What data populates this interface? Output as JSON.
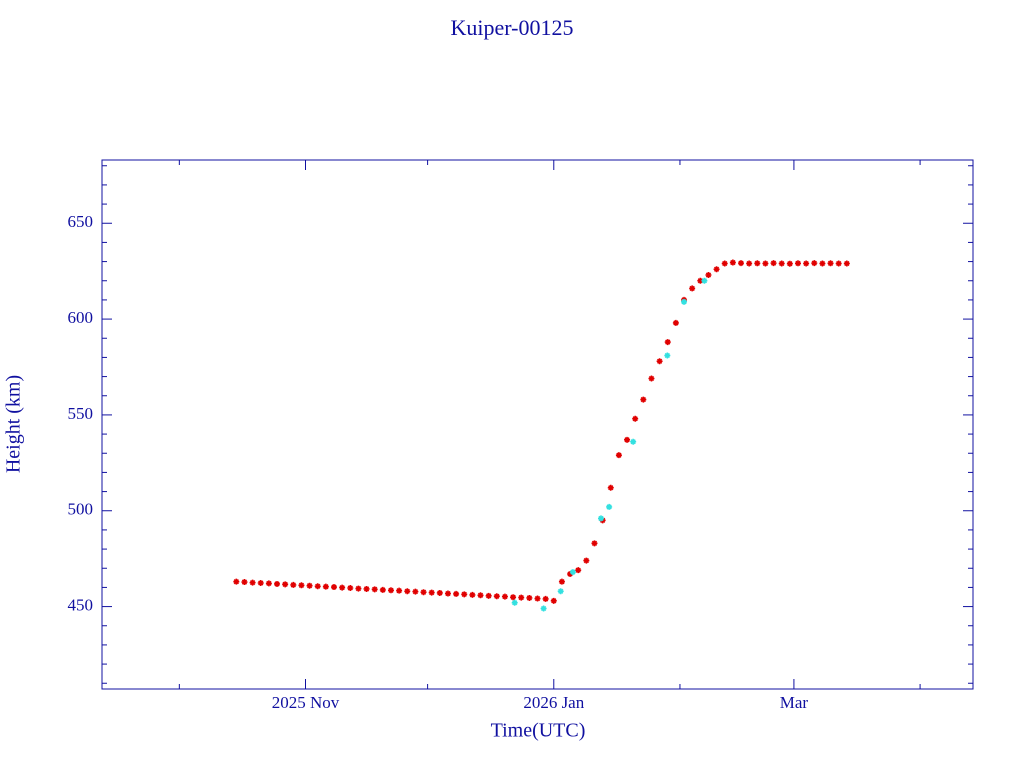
{
  "chart_data": {
    "type": "scatter",
    "title": "Kuiper-00125",
    "x_label": "Time(UTC)",
    "y_label": "Height (km)",
    "xlim": [
      -50,
      164
    ],
    "ylim": [
      407,
      683
    ],
    "xticks": [
      {
        "value": 0,
        "label": "2025 Nov"
      },
      {
        "value": 61,
        "label": "2026 Jan"
      },
      {
        "value": 120,
        "label": "Mar"
      }
    ],
    "xminorticks": [
      -31,
      30,
      92,
      151
    ],
    "yticks": [
      450,
      500,
      550,
      600,
      650
    ],
    "yminorticks": [
      410,
      420,
      430,
      440,
      460,
      470,
      480,
      490,
      510,
      520,
      530,
      540,
      560,
      570,
      580,
      590,
      610,
      620,
      630,
      640,
      660,
      670,
      680
    ],
    "series": [
      {
        "color": "#e00000",
        "x": [
          -17,
          -15,
          -13,
          -11,
          -9,
          -7,
          -5,
          -3,
          -1,
          1,
          3,
          5,
          7,
          9,
          11,
          13,
          15,
          17,
          19,
          21,
          23,
          25,
          27,
          29,
          31,
          33,
          35,
          37,
          39,
          41,
          43,
          45,
          47,
          49,
          51,
          53,
          55,
          57,
          59,
          61,
          63,
          65,
          67,
          69,
          71,
          73,
          75,
          77,
          79,
          81,
          83,
          85,
          87,
          89,
          91,
          93,
          95,
          97,
          99,
          101,
          103,
          105,
          107,
          109,
          111,
          113,
          115,
          117,
          119,
          121,
          123,
          125,
          127,
          129,
          131,
          133
        ],
        "values": [
          463,
          462.8,
          462.5,
          462.3,
          462.1,
          461.8,
          461.6,
          461.3,
          461.1,
          460.9,
          460.6,
          460.4,
          460.2,
          459.9,
          459.7,
          459.4,
          459.2,
          459.0,
          458.7,
          458.5,
          458.3,
          458.0,
          457.8,
          457.5,
          457.3,
          457.1,
          456.8,
          456.6,
          456.4,
          456.1,
          455.9,
          455.6,
          455.4,
          455.2,
          454.9,
          454.7,
          454.5,
          454.2,
          454.0,
          453,
          463,
          467,
          469,
          474,
          483,
          495,
          512,
          529,
          537,
          548,
          558,
          569,
          578,
          588,
          598,
          610,
          616,
          620,
          623,
          626,
          629,
          629.5,
          629.2,
          629,
          629.1,
          629,
          629.2,
          629,
          628.9,
          629.1,
          629,
          629.2,
          629,
          629.1,
          629,
          629
        ]
      },
      {
        "color": "#33e0e0",
        "x": [
          51.4,
          58.5,
          62.7,
          65.7,
          72.6,
          74.6,
          80.5,
          88.9,
          93,
          98
        ],
        "values": [
          452,
          449,
          458,
          468,
          496,
          502,
          536,
          581,
          609,
          620
        ]
      }
    ]
  }
}
